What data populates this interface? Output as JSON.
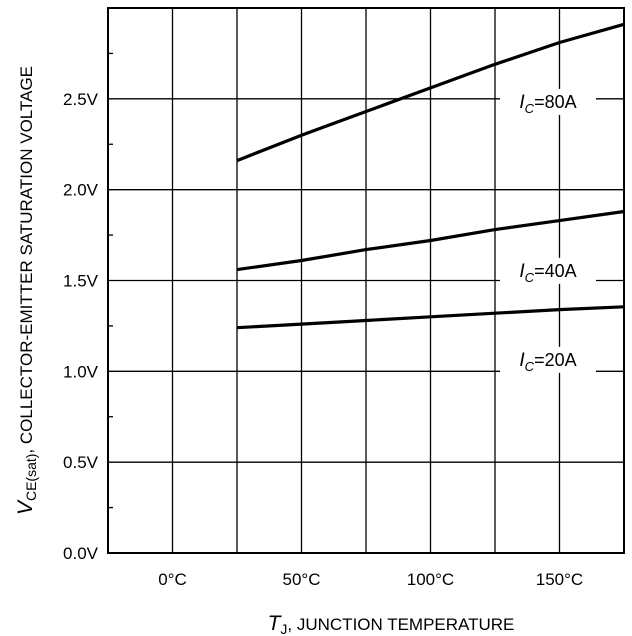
{
  "chart_data": {
    "type": "line",
    "xlabel": {
      "var": "T",
      "sub": "J",
      "text": ", JUNCTION TEMPERATURE"
    },
    "ylabel": {
      "var": "V",
      "sub": "CE(sat)",
      "text": ", COLLECTOR-EMITTER SATURATION VOLTAGE"
    },
    "xlim": [
      -25,
      175
    ],
    "ylim": [
      0,
      3.0
    ],
    "x_ticks": [
      0,
      50,
      100,
      150
    ],
    "x_tick_labels": [
      "0°C",
      "50°C",
      "100°C",
      "150°C"
    ],
    "y_ticks": [
      0,
      0.5,
      1.0,
      1.5,
      2.0,
      2.5
    ],
    "y_tick_labels": [
      "0.0V",
      "0.5V",
      "1.0V",
      "1.5V",
      "2.0V",
      "2.5V"
    ],
    "grid": true,
    "series": [
      {
        "name": "IC=80A",
        "label_var": "I",
        "label_sub": "C",
        "label_rest": "=80A",
        "x": [
          25,
          50,
          75,
          100,
          125,
          150,
          175
        ],
        "y": [
          2.16,
          2.3,
          2.43,
          2.56,
          2.69,
          2.81,
          2.91
        ]
      },
      {
        "name": "IC=40A",
        "label_var": "I",
        "label_sub": "C",
        "label_rest": "=40A",
        "x": [
          25,
          50,
          75,
          100,
          125,
          150,
          175
        ],
        "y": [
          1.56,
          1.61,
          1.67,
          1.72,
          1.78,
          1.83,
          1.88
        ]
      },
      {
        "name": "IC=20A",
        "label_var": "I",
        "label_sub": "C",
        "label_rest": "=20A",
        "x": [
          25,
          50,
          75,
          100,
          125,
          150,
          175
        ],
        "y": [
          1.24,
          1.26,
          1.28,
          1.3,
          1.32,
          1.34,
          1.355
        ]
      }
    ]
  }
}
